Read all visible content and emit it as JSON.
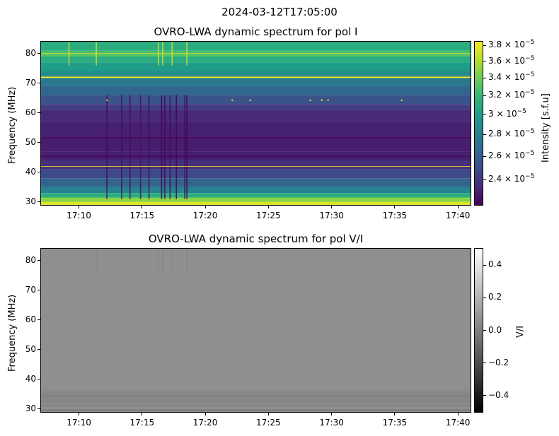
{
  "suptitle": "2024-03-12T17:05:00",
  "chart_data": [
    {
      "type": "heatmap",
      "title": "OVRO-LWA dynamic spectrum for pol I",
      "xlabel": "",
      "ylabel": "Frequency (MHz)",
      "xlim": [
        "17:07:00",
        "17:41:00"
      ],
      "ylim": [
        29,
        84
      ],
      "x_ticks": [
        "17:10",
        "17:15",
        "17:20",
        "17:25",
        "17:30",
        "17:35",
        "17:40"
      ],
      "y_ticks": [
        30,
        40,
        50,
        60,
        70,
        80
      ],
      "colormap": "viridis",
      "colorbar": {
        "label": "Intensity [s.f.u]",
        "scale": "log",
        "range": [
          2.2e-05,
          3.85e-05
        ],
        "ticks": [
          {
            "value": 3.8e-05,
            "mant": "3.8",
            "exp": "−5"
          },
          {
            "value": 3.6e-05,
            "mant": "3.6",
            "exp": "−5"
          },
          {
            "value": 3.4e-05,
            "mant": "3.4",
            "exp": "−5"
          },
          {
            "value": 3.2e-05,
            "mant": "3.2",
            "exp": "−5"
          },
          {
            "value": 3e-05,
            "mant": "3",
            "exp": "−5"
          },
          {
            "value": 2.8e-05,
            "mant": "2.8",
            "exp": "−5"
          },
          {
            "value": 2.6e-05,
            "mant": "2.6",
            "exp": "−5"
          },
          {
            "value": 2.4e-05,
            "mant": "2.4",
            "exp": "−5"
          }
        ]
      }
    },
    {
      "type": "heatmap",
      "title": "OVRO-LWA dynamic spectrum for pol V/I",
      "xlabel": "",
      "ylabel": "Frequency (MHz)",
      "xlim": [
        "17:07:00",
        "17:41:00"
      ],
      "ylim": [
        29,
        84
      ],
      "x_ticks": [
        "17:10",
        "17:15",
        "17:20",
        "17:25",
        "17:30",
        "17:35",
        "17:40"
      ],
      "y_ticks": [
        30,
        40,
        50,
        60,
        70,
        80
      ],
      "colormap": "gray",
      "colorbar": {
        "label": "V/I",
        "scale": "linear",
        "range": [
          -0.5,
          0.5
        ],
        "ticks": [
          {
            "value": 0.4,
            "text": "0.4"
          },
          {
            "value": 0.2,
            "text": "0.2"
          },
          {
            "value": 0.0,
            "text": "0.0"
          },
          {
            "value": -0.2,
            "text": "−0.2"
          },
          {
            "value": -0.4,
            "text": "−0.4"
          }
        ]
      }
    }
  ]
}
